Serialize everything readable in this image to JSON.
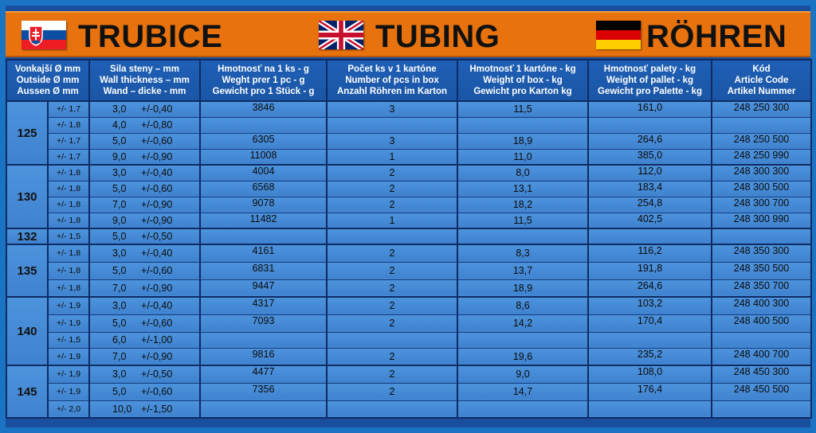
{
  "banner": {
    "title_sk": "TRUBICE",
    "title_en": "TUBING",
    "title_de": "RÖHREN"
  },
  "headers": {
    "outside": [
      "Vonkajší Ø mm",
      "Outside Ø mm",
      "Aussen Ø mm"
    ],
    "wall": [
      "Sila steny – mm",
      "Wall thickness – mm",
      "Wand – dicke - mm"
    ],
    "weight": [
      "Hmotnosť na 1 ks - g",
      "Weght prer 1 pc - g",
      "Gewicht pro 1 Stück - g"
    ],
    "pcs": [
      "Počet ks v 1 kartóne",
      "Number of pcs in box",
      "Anzahl Röhren im Karton"
    ],
    "box": [
      "Hmotnosť  1 kartóne - kg",
      "Weight of box - kg",
      "Gewicht pro Karton kg"
    ],
    "pallet": [
      "Hmotnosť palety - kg",
      "Weight of pallet - kg",
      "Gewicht pro Palette - kg"
    ],
    "code": [
      "Kód",
      "Article Code",
      "Artikel Nummer"
    ]
  },
  "groups": [
    {
      "diameter": "125",
      "rows": [
        {
          "tol": "+/- 1,7",
          "wall": "3,0",
          "wtol": "+/-0,40",
          "weight": "3846",
          "pcs": "3",
          "box": "11,5",
          "pallet": "161,0",
          "code": "248 250 300"
        },
        {
          "tol": "+/- 1,8",
          "wall": "4,0",
          "wtol": "+/-0,80",
          "weight": "",
          "pcs": "",
          "box": "",
          "pallet": "",
          "code": ""
        },
        {
          "tol": "+/- 1,7",
          "wall": "5,0",
          "wtol": "+/-0,60",
          "weight": "6305",
          "pcs": "3",
          "box": "18,9",
          "pallet": "264,6",
          "code": "248 250 500"
        },
        {
          "tol": "+/- 1,7",
          "wall": "9,0",
          "wtol": "+/-0,90",
          "weight": "11008",
          "pcs": "1",
          "box": "11,0",
          "pallet": "385,0",
          "code": "248 250 990"
        }
      ]
    },
    {
      "diameter": "130",
      "rows": [
        {
          "tol": "+/- 1,8",
          "wall": "3,0",
          "wtol": "+/-0,40",
          "weight": "4004",
          "pcs": "2",
          "box": "8,0",
          "pallet": "112,0",
          "code": "248 300 300"
        },
        {
          "tol": "+/- 1,8",
          "wall": "5,0",
          "wtol": "+/-0,60",
          "weight": "6568",
          "pcs": "2",
          "box": "13,1",
          "pallet": "183,4",
          "code": "248 300 500"
        },
        {
          "tol": "+/- 1,8",
          "wall": "7,0",
          "wtol": "+/-0,90",
          "weight": "9078",
          "pcs": "2",
          "box": "18,2",
          "pallet": "254,8",
          "code": "248 300 700"
        },
        {
          "tol": "+/- 1,8",
          "wall": "9,0",
          "wtol": "+/-0,90",
          "weight": "11482",
          "pcs": "1",
          "box": "11,5",
          "pallet": "402,5",
          "code": "248 300 990"
        }
      ]
    },
    {
      "diameter": "132",
      "rows": [
        {
          "tol": "+/- 1,5",
          "wall": "5,0",
          "wtol": "+/-0,50",
          "weight": "",
          "pcs": "",
          "box": "",
          "pallet": "",
          "code": ""
        }
      ]
    },
    {
      "diameter": "135",
      "rows": [
        {
          "tol": "+/- 1,8",
          "wall": "3,0",
          "wtol": "+/-0,40",
          "weight": "4161",
          "pcs": "2",
          "box": "8,3",
          "pallet": "116,2",
          "code": "248 350 300"
        },
        {
          "tol": "+/- 1,8",
          "wall": "5,0",
          "wtol": "+/-0,60",
          "weight": "6831",
          "pcs": "2",
          "box": "13,7",
          "pallet": "191,8",
          "code": "248 350 500"
        },
        {
          "tol": "+/- 1,8",
          "wall": "7,0",
          "wtol": "+/-0,90",
          "weight": "9447",
          "pcs": "2",
          "box": "18,9",
          "pallet": "264,6",
          "code": "248 350 700"
        }
      ]
    },
    {
      "diameter": "140",
      "rows": [
        {
          "tol": "+/- 1,9",
          "wall": "3,0",
          "wtol": "+/-0,40",
          "weight": "4317",
          "pcs": "2",
          "box": "8,6",
          "pallet": "103,2",
          "code": "248 400 300"
        },
        {
          "tol": "+/- 1,9",
          "wall": "5,0",
          "wtol": "+/-0,60",
          "weight": "7093",
          "pcs": "2",
          "box": "14,2",
          "pallet": "170,4",
          "code": "248 400 500"
        },
        {
          "tol": "+/- 1,5",
          "wall": "6,0",
          "wtol": "+/-1,00",
          "weight": "",
          "pcs": "",
          "box": "",
          "pallet": "",
          "code": ""
        },
        {
          "tol": "+/- 1,9",
          "wall": "7,0",
          "wtol": "+/-0,90",
          "weight": "9816",
          "pcs": "2",
          "box": "19,6",
          "pallet": "235,2",
          "code": "248 400 700"
        }
      ]
    },
    {
      "diameter": "145",
      "rows": [
        {
          "tol": "+/- 1,9",
          "wall": "3,0",
          "wtol": "+/-0,50",
          "weight": "4477",
          "pcs": "2",
          "box": "9,0",
          "pallet": "108,0",
          "code": "248 450 300"
        },
        {
          "tol": "+/- 1,9",
          "wall": "5,0",
          "wtol": "+/-0,60",
          "weight": "7356",
          "pcs": "2",
          "box": "14,7",
          "pallet": "176,4",
          "code": "248 450 500"
        },
        {
          "tol": "+/- 2,0",
          "wall": "10,0",
          "wtol": "+/-1,50",
          "weight": "",
          "pcs": "",
          "box": "",
          "pallet": "",
          "code": ""
        }
      ]
    }
  ]
}
